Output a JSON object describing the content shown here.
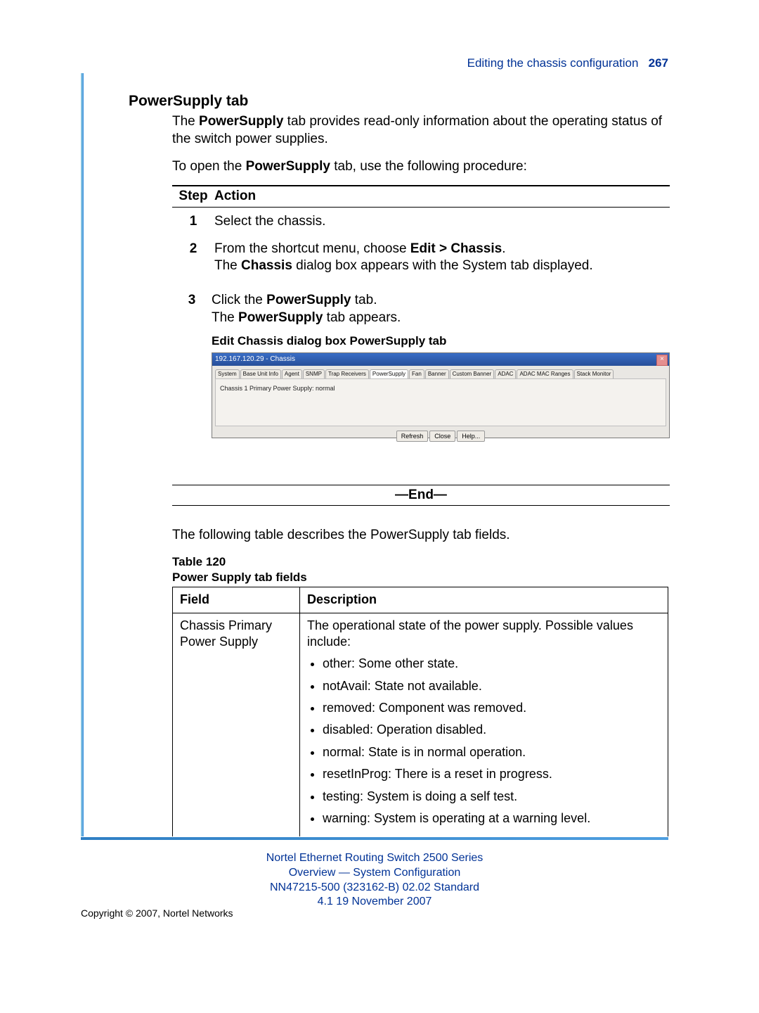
{
  "header": {
    "running": "Editing the chassis configuration",
    "page_number": "267"
  },
  "section_title": "PowerSupply tab",
  "intro_html": "The <span class=\"bold\">PowerSupply</span> tab provides read-only information about the operating status of the switch power supplies.",
  "open_html": "To open the <span class=\"bold\">PowerSupply</span> tab, use the following procedure:",
  "steps": {
    "header_step": "Step",
    "header_action": "Action",
    "rows": [
      {
        "num": "1",
        "body_html": "Select the chassis."
      },
      {
        "num": "2",
        "body_html": "From the shortcut menu, choose <span class=\"bold\">Edit > Chassis</span>.<p>The <span class=\"bold\">Chassis</span> dialog box appears with the System tab displayed.</p>"
      },
      {
        "num": "3",
        "body_html": "Click the <span class=\"bold\">PowerSupply</span> tab.<p>The <span class=\"bold\">PowerSupply</span> tab appears.</p>"
      }
    ]
  },
  "figure": {
    "caption": "Edit Chassis dialog box PowerSupply tab",
    "title": "192.167.120.29 - Chassis",
    "tabs": [
      "System",
      "Base Unit Info",
      "Agent",
      "SNMP",
      "Trap Receivers",
      "PowerSupply",
      "Fan",
      "Banner",
      "Custom Banner",
      "ADAC",
      "ADAC MAC Ranges",
      "Stack Monitor"
    ],
    "active_tab_index": 5,
    "panel_text": "Chassis 1 Primary Power Supply: normal",
    "buttons": [
      "Refresh",
      "Close",
      "Help..."
    ]
  },
  "end_label": "—End—",
  "table_intro": "The following table describes the PowerSupply tab fields.",
  "table": {
    "caption_line1": "Table 120",
    "caption_line2": "Power Supply tab fields",
    "header_field": "Field",
    "header_desc": "Description",
    "row_field": "Chassis Primary Power Supply",
    "row_desc_intro": "The operational state of the power supply.  Possible values include:",
    "row_desc_items": [
      "other:  Some other state.",
      "notAvail:  State not available.",
      "removed:  Component was removed.",
      "disabled:  Operation disabled.",
      "normal:  State is in normal operation.",
      "resetInProg:  There is a reset in progress.",
      "testing:  System is doing a self test.",
      "warning:  System is operating at a warning level."
    ]
  },
  "footer": {
    "line1": "Nortel Ethernet Routing Switch 2500 Series",
    "line2": "Overview — System Configuration",
    "line3": "NN47215-500 (323162-B)   02.02   Standard",
    "line4": "4.1   19 November 2007"
  },
  "copyright": "Copyright © 2007, Nortel Networks",
  "colors": {
    "link_blue": "#003296",
    "rule_blue_light": "#9ad0e4",
    "rule_blue_dark": "#3a8fdc"
  }
}
